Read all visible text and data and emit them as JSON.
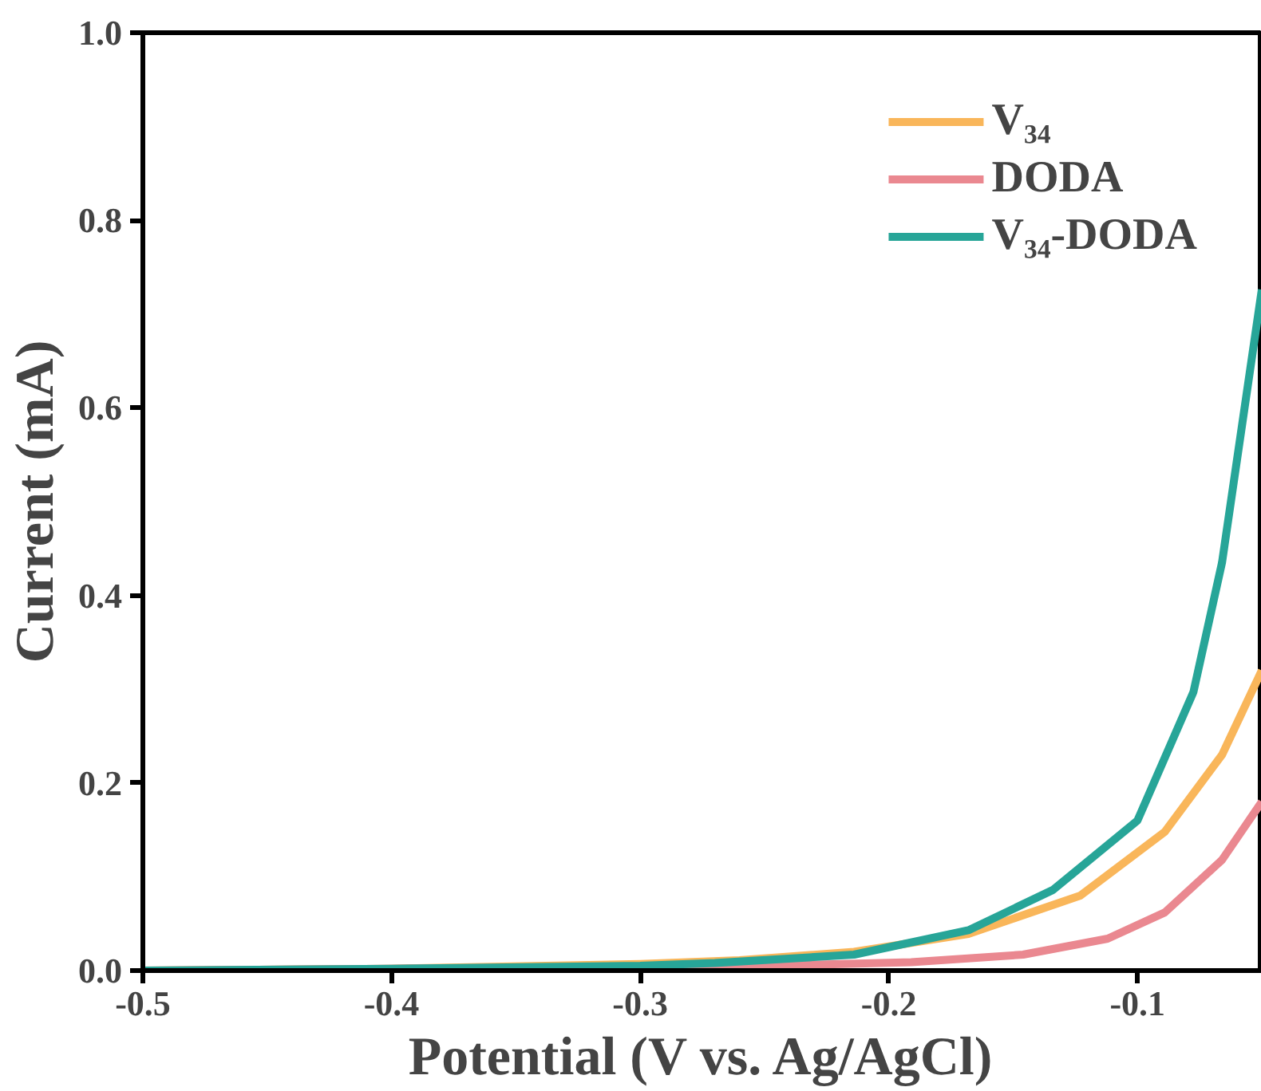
{
  "chart_data": {
    "type": "line",
    "xlabel": "Potential (V vs. Ag/AgCl)",
    "ylabel": "Current (mA)",
    "xlim": [
      -0.5,
      -0.05
    ],
    "ylim": [
      0,
      1.0
    ],
    "xticks": [
      -0.5,
      -0.4,
      -0.3,
      -0.2,
      -0.1
    ],
    "yticks": [
      {
        "value": 0,
        "label": "0.0"
      },
      0.2,
      0.4,
      0.6,
      0.8,
      {
        "value": 1.0,
        "label": "1.0"
      }
    ],
    "grid": false,
    "legend": "top right",
    "line_style": "solid",
    "marker": "none",
    "series": [
      {
        "name": "V₃₄",
        "color": "#f9b65a",
        "x": [
          -0.5,
          -0.4,
          -0.3,
          -0.26,
          -0.214,
          -0.168,
          -0.123,
          -0.089,
          -0.066,
          -0.05
        ],
        "values": [
          0.0,
          0.002,
          0.007,
          0.011,
          0.02,
          0.039,
          0.08,
          0.148,
          0.23,
          0.32
        ]
      },
      {
        "name": "DODA",
        "color": "#ea8890",
        "x": [
          -0.5,
          -0.4,
          -0.3,
          -0.248,
          -0.191,
          -0.146,
          -0.112,
          -0.089,
          -0.066,
          -0.05
        ],
        "values": [
          0.0,
          0.002,
          0.004,
          0.005,
          0.009,
          0.017,
          0.034,
          0.062,
          0.118,
          0.18
        ]
      },
      {
        "name": "V₃₄-DODA",
        "color": "#27a598",
        "x": [
          -0.5,
          -0.4,
          -0.3,
          -0.27,
          -0.214,
          -0.168,
          -0.134,
          -0.1,
          -0.0775,
          -0.066,
          -0.05
        ],
        "values": [
          0.0,
          0.002,
          0.005,
          0.008,
          0.017,
          0.043,
          0.086,
          0.16,
          0.297,
          0.435,
          0.726
        ]
      }
    ]
  }
}
